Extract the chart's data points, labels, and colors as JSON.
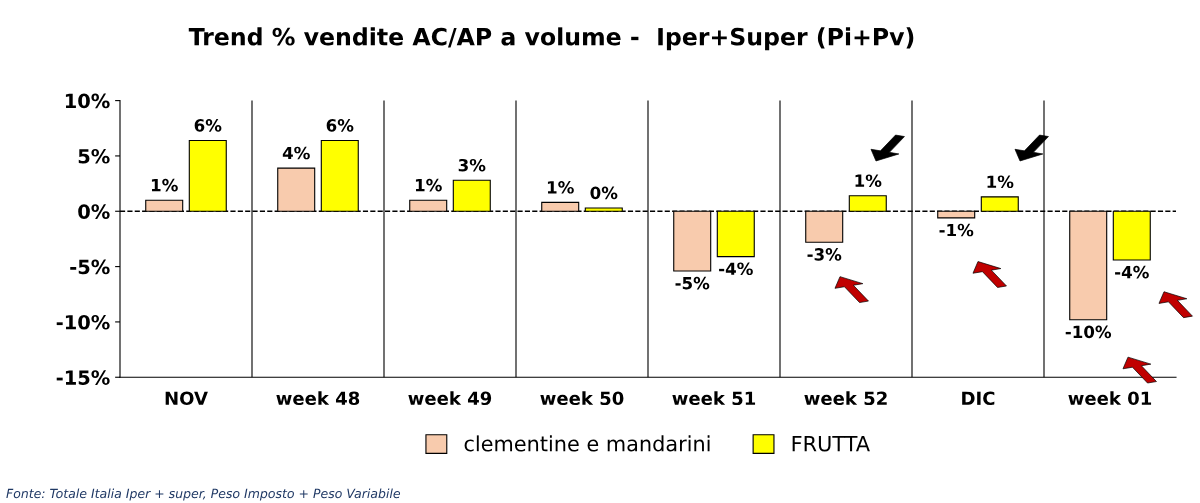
{
  "chart_data": {
    "type": "bar",
    "title": "Trend % vendite AC/AP a volume -  Iper+Super (Pi+Pv)",
    "categories": [
      "NOV",
      "week 48",
      "week 49",
      "week 50",
      "week 51",
      "week 52",
      "DIC",
      "week 01"
    ],
    "series": [
      {
        "name": "clementine e mandarini",
        "color": "#f8cbad",
        "values": [
          1.0,
          3.9,
          1.0,
          0.8,
          -5.4,
          -2.8,
          -0.6,
          -9.8
        ],
        "value_labels": [
          "1%",
          "4%",
          "1%",
          "1%",
          "-5%",
          "-3%",
          "-1%",
          "-10%"
        ]
      },
      {
        "name": "FRUTTA",
        "color": "#ffff00",
        "values": [
          6.4,
          6.4,
          2.8,
          0.3,
          -4.1,
          1.4,
          1.3,
          -4.4
        ],
        "value_labels": [
          "6%",
          "6%",
          "3%",
          "0%",
          "-4%",
          "1%",
          "1%",
          "-4%"
        ]
      }
    ],
    "ylim": [
      -15,
      10
    ],
    "yticks": [
      {
        "value": -15,
        "label": "-15%"
      },
      {
        "value": -10,
        "label": "-10%"
      },
      {
        "value": -5,
        "label": "-5%"
      },
      {
        "value": 0,
        "label": "0%"
      },
      {
        "value": 5,
        "label": "5%"
      },
      {
        "value": 10,
        "label": "10%"
      }
    ],
    "ref_lines": [
      {
        "axis": "y",
        "value": 0,
        "color": "#000000",
        "line_style": "dashed"
      }
    ],
    "grid": "x",
    "legend": "bottom",
    "annotations": [
      "Fonte: Totale Italia Iper + super, Peso Imposto + Peso Variabile"
    ]
  }
}
